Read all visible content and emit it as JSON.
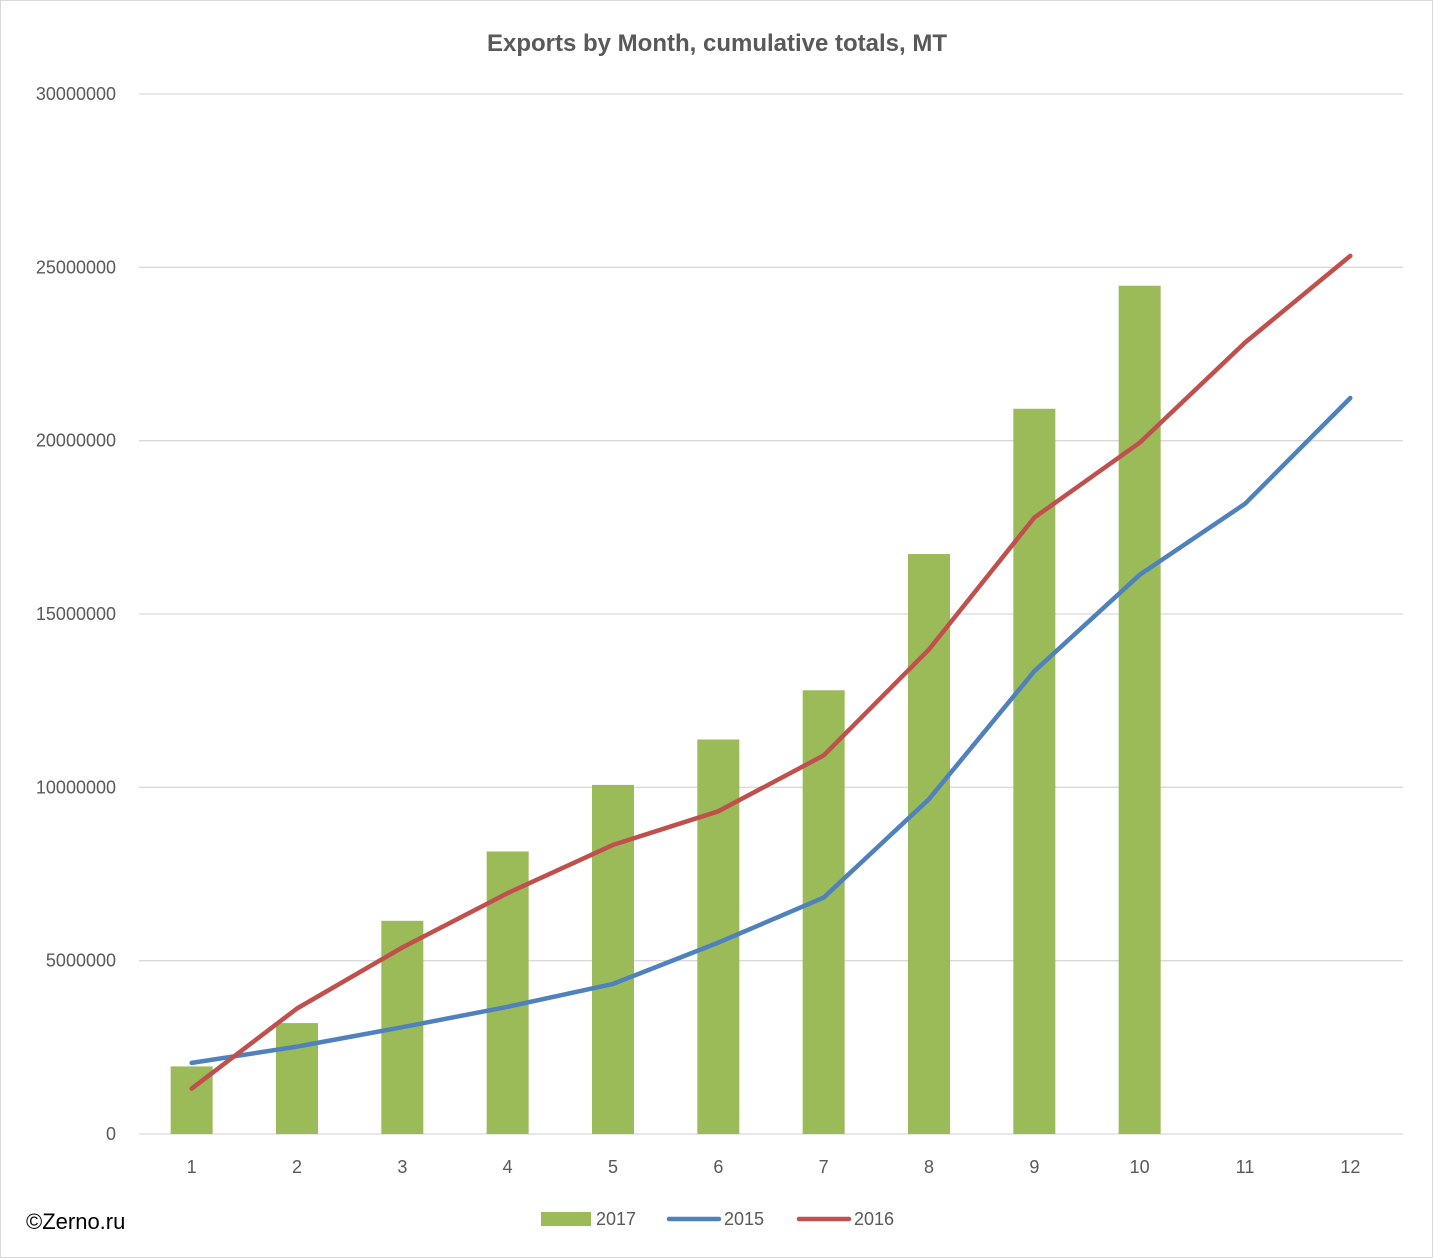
{
  "watermark": "©Zerno.ru",
  "chart_data": {
    "type": "bar",
    "title": "Exports by Month, cumulative totals, MT",
    "xlabel": "",
    "ylabel": "",
    "categories": [
      "1",
      "2",
      "3",
      "4",
      "5",
      "6",
      "7",
      "8",
      "9",
      "10",
      "11",
      "12"
    ],
    "ylim": [
      0,
      30000000
    ],
    "yticks": [
      "0",
      "5000000",
      "10000000",
      "15000000",
      "20000000",
      "25000000",
      "30000000"
    ],
    "grid": true,
    "legend_position": "bottom",
    "series": [
      {
        "name": "2017",
        "type": "bar",
        "color": "#9bbb59",
        "values": [
          1950000,
          3200000,
          6150000,
          8150000,
          10070000,
          11380000,
          12800000,
          16730000,
          20920000,
          24470000,
          null,
          null
        ]
      },
      {
        "name": "2015",
        "type": "line",
        "color": "#4f81bd",
        "values": [
          2050000,
          2520000,
          3080000,
          3670000,
          4330000,
          5520000,
          6820000,
          9660000,
          13350000,
          16130000,
          18180000,
          21230000
        ]
      },
      {
        "name": "2016",
        "type": "line",
        "color": "#c0504d",
        "values": [
          1310000,
          3620000,
          5380000,
          6950000,
          8340000,
          9310000,
          10920000,
          13980000,
          17780000,
          19940000,
          22830000,
          25330000
        ]
      }
    ]
  }
}
